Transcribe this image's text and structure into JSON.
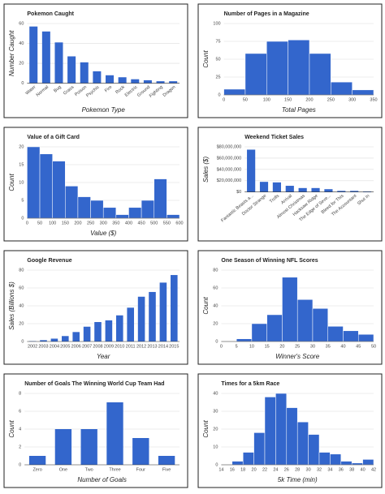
{
  "chart_data": [
    {
      "type": "bar",
      "title": "Pokemon Caught",
      "x_label": "Pokemon Type",
      "y_label": "Number Caught",
      "categories": [
        "Water",
        "Normal",
        "Bug",
        "Grass",
        "Poison",
        "Psychic",
        "Fire",
        "Rock",
        "Electric",
        "Ground",
        "Fighting",
        "Dragon"
      ],
      "values": [
        57,
        52,
        41,
        27,
        21,
        12,
        8,
        6,
        4,
        3,
        2,
        2
      ],
      "color": "#3366cc",
      "ylim": [
        0,
        60
      ],
      "yticks": [
        0,
        20,
        40,
        60
      ],
      "grid": true
    },
    {
      "type": "histogram",
      "title": "Number of Pages in a Magazine",
      "x_label": "Total Pages",
      "y_label": "Count",
      "bins": [
        0,
        50,
        100,
        150,
        200,
        250,
        300,
        350
      ],
      "values": [
        8,
        58,
        75,
        77,
        58,
        18,
        7
      ],
      "color": "#3366cc",
      "xlim": [
        0,
        350
      ],
      "xticks": [
        0,
        50,
        100,
        150,
        200,
        250,
        300,
        350
      ],
      "ylim": [
        0,
        100
      ],
      "yticks": [
        0,
        25,
        50,
        75,
        100
      ],
      "grid": true
    },
    {
      "type": "histogram",
      "title": "Value of a Gift Card",
      "x_label": "Value ($)",
      "y_label": "Count",
      "bins": [
        0,
        50,
        100,
        150,
        200,
        250,
        300,
        350,
        400,
        450,
        500,
        550,
        600
      ],
      "values": [
        20,
        18,
        16,
        9,
        6,
        5,
        3,
        1,
        3,
        5,
        11,
        1
      ],
      "color": "#3366cc",
      "xlim": [
        0,
        600
      ],
      "xticks": [
        0,
        50,
        100,
        150,
        200,
        250,
        300,
        350,
        400,
        450,
        500,
        550,
        600
      ],
      "ylim": [
        0,
        20
      ],
      "yticks": [
        0,
        5,
        10,
        15,
        20
      ],
      "grid": true
    },
    {
      "type": "bar",
      "title": "Weekend Ticket Sales",
      "y_label": "Sales ($)",
      "categories": [
        "Fantastic Beasts a...",
        "Doctor Strange",
        "Trolls",
        "Arrival",
        "Almost Christmas",
        "Hacksaw Ridge",
        "The Edge of Seve...",
        "Bleed for This",
        "The Accountant",
        "Shut In"
      ],
      "values": [
        75000000,
        18000000,
        17000000,
        11000000,
        7000000,
        7000000,
        5000000,
        2000000,
        2000000,
        1000000
      ],
      "color": "#3366cc",
      "ylim": [
        0,
        80000000
      ],
      "yticks": [
        {
          "value": 0,
          "label": "$0"
        },
        {
          "value": 20000000,
          "label": "$20,000,000"
        },
        {
          "value": 40000000,
          "label": "$40,000,000"
        },
        {
          "value": 60000000,
          "label": "$60,000,000"
        },
        {
          "value": 80000000,
          "label": "$80,000,000"
        }
      ],
      "grid": true
    },
    {
      "type": "bar",
      "title": "Google Revenue",
      "x_label": "Year",
      "y_label": "Sales (Billions $)",
      "categories": [
        "2002",
        "2003",
        "2004",
        "2005",
        "2006",
        "2007",
        "2008",
        "2009",
        "2010",
        "2011",
        "2012",
        "2013",
        "2014",
        "2015"
      ],
      "values": [
        0.4,
        1.5,
        3.2,
        6.1,
        10.6,
        16.6,
        21.8,
        23.7,
        29.3,
        37.9,
        50.2,
        55.5,
        66,
        74.5
      ],
      "color": "#3366cc",
      "ylim": [
        0,
        80
      ],
      "yticks": [
        0,
        20,
        40,
        60,
        80
      ],
      "grid": true
    },
    {
      "type": "histogram",
      "title": "One Season of Winning NFL Scores",
      "x_label": "Winner's Score",
      "y_label": "Count",
      "bins": [
        5,
        10,
        15,
        20,
        25,
        30,
        35,
        40,
        45,
        50
      ],
      "values": [
        3,
        20,
        30,
        72,
        47,
        37,
        17,
        12,
        8
      ],
      "color": "#3366cc",
      "xlim": [
        0,
        50
      ],
      "xticks": [
        0,
        5,
        10,
        15,
        20,
        25,
        30,
        35,
        40,
        45,
        50
      ],
      "ylim": [
        0,
        80
      ],
      "yticks": [
        0,
        20,
        40,
        60,
        80
      ],
      "grid": true
    },
    {
      "type": "bar",
      "title": "Number of Goals The Winning World Cup Team Had",
      "x_label": "Number of Goals",
      "y_label": "Count",
      "categories": [
        "Zero",
        "One",
        "Two",
        "Three",
        "Four",
        "Five"
      ],
      "values": [
        1,
        4,
        4,
        7,
        3,
        1
      ],
      "color": "#3366cc",
      "ylim": [
        0,
        8
      ],
      "yticks": [
        0,
        2,
        4,
        6,
        8
      ],
      "grid": true
    },
    {
      "type": "histogram",
      "title": "Times for a 5km Race",
      "x_label": "5k Time (min)",
      "y_label": "Count",
      "bins": [
        16,
        18,
        20,
        22,
        24,
        26,
        28,
        30,
        32,
        34,
        36,
        38,
        40,
        42
      ],
      "values": [
        2,
        7,
        18,
        38,
        40,
        32,
        24,
        17,
        7,
        6,
        2,
        1,
        3
      ],
      "color": "#3366cc",
      "xlim": [
        14,
        42
      ],
      "xticks": [
        14,
        16,
        18,
        20,
        22,
        24,
        26,
        28,
        30,
        32,
        34,
        36,
        38,
        40,
        42
      ],
      "ylim": [
        0,
        40
      ],
      "yticks": [
        0,
        10,
        20,
        30,
        40
      ],
      "grid": true
    }
  ]
}
